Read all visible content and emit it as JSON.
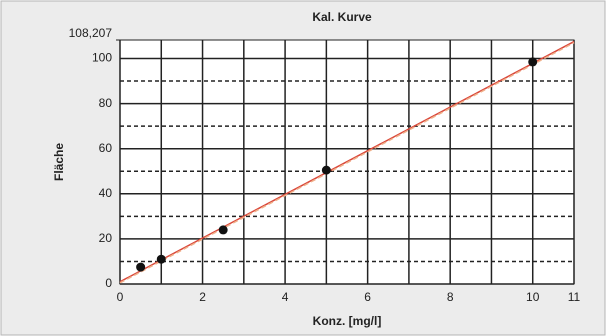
{
  "chart_data": {
    "type": "scatter",
    "title": "Kal. Kurve",
    "x_label": "Konz. [mg/l]",
    "y_label": "Fläche",
    "xlim": [
      0,
      11
    ],
    "ylim": [
      0,
      108.207
    ],
    "xticks": [
      0,
      2,
      4,
      6,
      8,
      10,
      11
    ],
    "yticks": [
      0,
      20,
      40,
      60,
      80,
      100,
      {
        "value": 108.207,
        "label": "108,207"
      }
    ],
    "xminorticks": [
      1,
      3,
      5,
      7,
      9
    ],
    "yminorticks": [
      10,
      30,
      50,
      70,
      90
    ],
    "grid": true,
    "series": [
      {
        "color": "#111111",
        "x": [
          0.5,
          1,
          2.5,
          5,
          10
        ],
        "values": [
          7.5,
          11,
          24,
          50.5,
          98.5
        ]
      },
      {
        "type": "line",
        "color": "#d9473a",
        "x": [
          0,
          11
        ],
        "values": [
          1,
          107.5
        ]
      },
      {
        "type": "line",
        "dashed": true,
        "color": "#f0b08a",
        "x": [
          0,
          11
        ],
        "values": [
          0.5,
          107
        ]
      }
    ]
  }
}
